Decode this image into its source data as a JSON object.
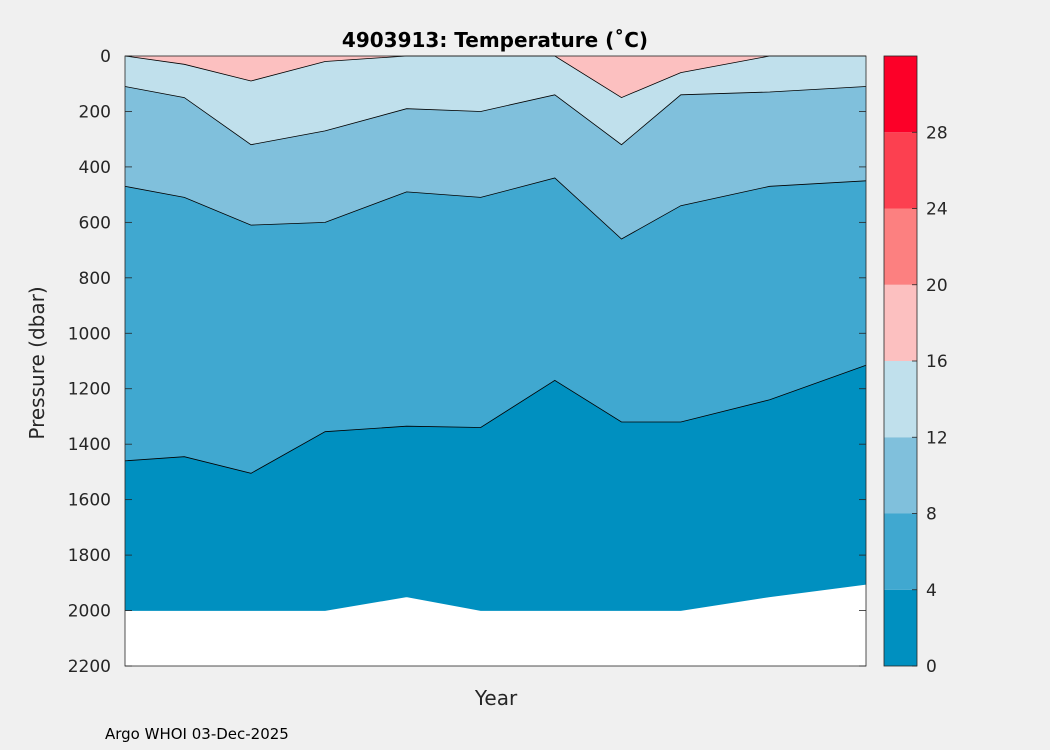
{
  "chart_data": {
    "type": "contour",
    "title": "4903913:  Temperature (˚C)",
    "xlabel": "Year",
    "ylabel": "Pressure (dbar)",
    "x_ticks": [],
    "ylim": [
      0,
      2200
    ],
    "y_reversed": true,
    "y_ticks": [
      0,
      200,
      400,
      600,
      800,
      1000,
      1200,
      1400,
      1600,
      1800,
      2000,
      2200
    ],
    "colorbar": {
      "range": [
        0,
        32
      ],
      "ticks": [
        0,
        4,
        8,
        12,
        16,
        20,
        24,
        28
      ],
      "levels": [
        {
          "from": 0,
          "to": 4,
          "color": "#0090c0"
        },
        {
          "from": 4,
          "to": 8,
          "color": "#40a8d0"
        },
        {
          "from": 8,
          "to": 12,
          "color": "#80c0dc"
        },
        {
          "from": 12,
          "to": 16,
          "color": "#c0e0ec"
        },
        {
          "from": 16,
          "to": 20,
          "color": "#fcc0c0"
        },
        {
          "from": 20,
          "to": 24,
          "color": "#fc8080"
        },
        {
          "from": 24,
          "to": 28,
          "color": "#fc4050"
        },
        {
          "from": 28,
          "to": 32,
          "color": "#fc0028"
        }
      ]
    },
    "approx_isotherm_depths": {
      "profile_fraction": [
        0,
        0.08,
        0.17,
        0.27,
        0.38,
        0.48,
        0.58,
        0.67,
        0.75,
        0.87,
        1.0
      ],
      "isotherm_4C": [
        1460,
        1445,
        1505,
        1355,
        1335,
        1340,
        1170,
        1320,
        1320,
        1240,
        1115
      ],
      "isotherm_8C": [
        470,
        510,
        610,
        600,
        490,
        510,
        440,
        660,
        540,
        470,
        450
      ],
      "isotherm_12C": [
        110,
        150,
        320,
        270,
        190,
        200,
        140,
        320,
        140,
        130,
        110
      ],
      "isotherm_16C": [
        0,
        30,
        90,
        20,
        0,
        0,
        0,
        150,
        60,
        0,
        0
      ],
      "data_bottom": [
        2000,
        2000,
        2000,
        2000,
        1950,
        2000,
        2000,
        2000,
        2000,
        1950,
        1905
      ]
    },
    "grid": false,
    "legend": "colorbar-right"
  },
  "footer": "Argo WHOI 03-Dec-2025"
}
